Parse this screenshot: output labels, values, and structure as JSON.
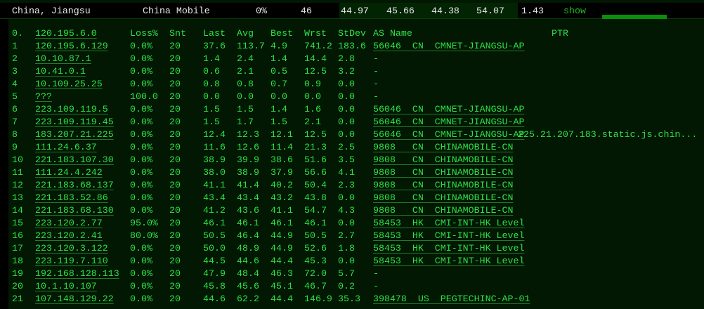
{
  "summary": {
    "location": "China, Jiangsu",
    "isp": "China Mobile",
    "loss": "0%",
    "sent": "46",
    "last": "44.97",
    "avg": "45.66",
    "best": "44.38",
    "worst": "54.07",
    "stdev": "1.43",
    "toggle": "show"
  },
  "header": {
    "index": "0.",
    "host": "120.195.6.0",
    "loss": "Loss%",
    "snt": "Snt",
    "last": "Last",
    "avg": "Avg",
    "best": "Best",
    "wrst": "Wrst",
    "stdev": "StDev",
    "as": "AS Name",
    "ptr": "PTR"
  },
  "hops": [
    [
      "1",
      "120.195.6.129",
      "0.0%",
      "20",
      "37.6",
      "113.7",
      "4.9",
      "741.2",
      "183.6",
      "56046  CN  CMNET-JIANGSU-AP",
      ""
    ],
    [
      "2",
      "10.10.87.1",
      "0.0%",
      "20",
      "1.4",
      "2.4",
      "1.4",
      "14.4",
      "2.8",
      "-",
      ""
    ],
    [
      "3",
      "10.41.0.1",
      "0.0%",
      "20",
      "0.6",
      "2.1",
      "0.5",
      "12.5",
      "3.2",
      "-",
      ""
    ],
    [
      "4",
      "10.109.25.25",
      "0.0%",
      "20",
      "0.8",
      "0.8",
      "0.7",
      "0.9",
      "0.0",
      "-",
      ""
    ],
    [
      "5",
      "???",
      "100.0",
      "20",
      "0.0",
      "0.0",
      "0.0",
      "0.0",
      "0.0",
      "-",
      ""
    ],
    [
      "6",
      "223.109.119.5",
      "0.0%",
      "20",
      "1.5",
      "1.5",
      "1.4",
      "1.6",
      "0.0",
      "56046  CN  CMNET-JIANGSU-AP",
      ""
    ],
    [
      "7",
      "223.109.119.45",
      "0.0%",
      "20",
      "1.5",
      "1.7",
      "1.5",
      "2.1",
      "0.0",
      "56046  CN  CMNET-JIANGSU-AP",
      ""
    ],
    [
      "8",
      "183.207.21.225",
      "0.0%",
      "20",
      "12.4",
      "12.3",
      "12.1",
      "12.5",
      "0.0",
      "56046  CN  CMNET-JIANGSU-AP",
      "225.21.207.183.static.js.chin..."
    ],
    [
      "9",
      "111.24.6.37",
      "0.0%",
      "20",
      "11.6",
      "12.6",
      "11.4",
      "21.3",
      "2.5",
      "9808   CN  CHINAMOBILE-CN",
      ""
    ],
    [
      "10",
      "221.183.107.30",
      "0.0%",
      "20",
      "38.9",
      "39.9",
      "38.6",
      "51.6",
      "3.5",
      "9808   CN  CHINAMOBILE-CN",
      ""
    ],
    [
      "11",
      "111.24.4.242",
      "0.0%",
      "20",
      "38.0",
      "38.9",
      "37.9",
      "56.6",
      "4.1",
      "9808   CN  CHINAMOBILE-CN",
      ""
    ],
    [
      "12",
      "221.183.68.137",
      "0.0%",
      "20",
      "41.1",
      "41.4",
      "40.2",
      "50.4",
      "2.3",
      "9808   CN  CHINAMOBILE-CN",
      ""
    ],
    [
      "13",
      "221.183.52.86",
      "0.0%",
      "20",
      "43.4",
      "43.4",
      "43.2",
      "43.8",
      "0.0",
      "9808   CN  CHINAMOBILE-CN",
      ""
    ],
    [
      "14",
      "221.183.68.130",
      "0.0%",
      "20",
      "41.2",
      "43.6",
      "41.1",
      "54.7",
      "4.3",
      "9808   CN  CHINAMOBILE-CN",
      ""
    ],
    [
      "15",
      "223.120.2.77",
      "95.0%",
      "20",
      "46.1",
      "46.1",
      "46.1",
      "46.1",
      "0.0",
      "58453  HK  CMI-INT-HK Level",
      ""
    ],
    [
      "16",
      "223.120.2.41",
      "80.0%",
      "20",
      "50.5",
      "46.4",
      "44.9",
      "50.5",
      "2.7",
      "58453  HK  CMI-INT-HK Level",
      ""
    ],
    [
      "17",
      "223.120.3.122",
      "0.0%",
      "20",
      "50.0",
      "48.9",
      "44.9",
      "52.6",
      "1.8",
      "58453  HK  CMI-INT-HK Level",
      ""
    ],
    [
      "18",
      "223.119.7.110",
      "0.0%",
      "20",
      "44.5",
      "44.6",
      "44.4",
      "45.3",
      "0.0",
      "58453  HK  CMI-INT-HK Level",
      ""
    ],
    [
      "19",
      "192.168.128.113",
      "0.0%",
      "20",
      "47.9",
      "48.4",
      "46.3",
      "72.0",
      "5.7",
      "-",
      ""
    ],
    [
      "20",
      "10.1.10.107",
      "0.0%",
      "20",
      "45.8",
      "45.6",
      "45.1",
      "46.7",
      "0.2",
      "-",
      ""
    ],
    [
      "21",
      "107.148.129.22",
      "0.0%",
      "20",
      "44.6",
      "62.2",
      "44.4",
      "146.9",
      "35.3",
      "398478  US  PEGTECHINC-AP-01",
      ""
    ]
  ]
}
